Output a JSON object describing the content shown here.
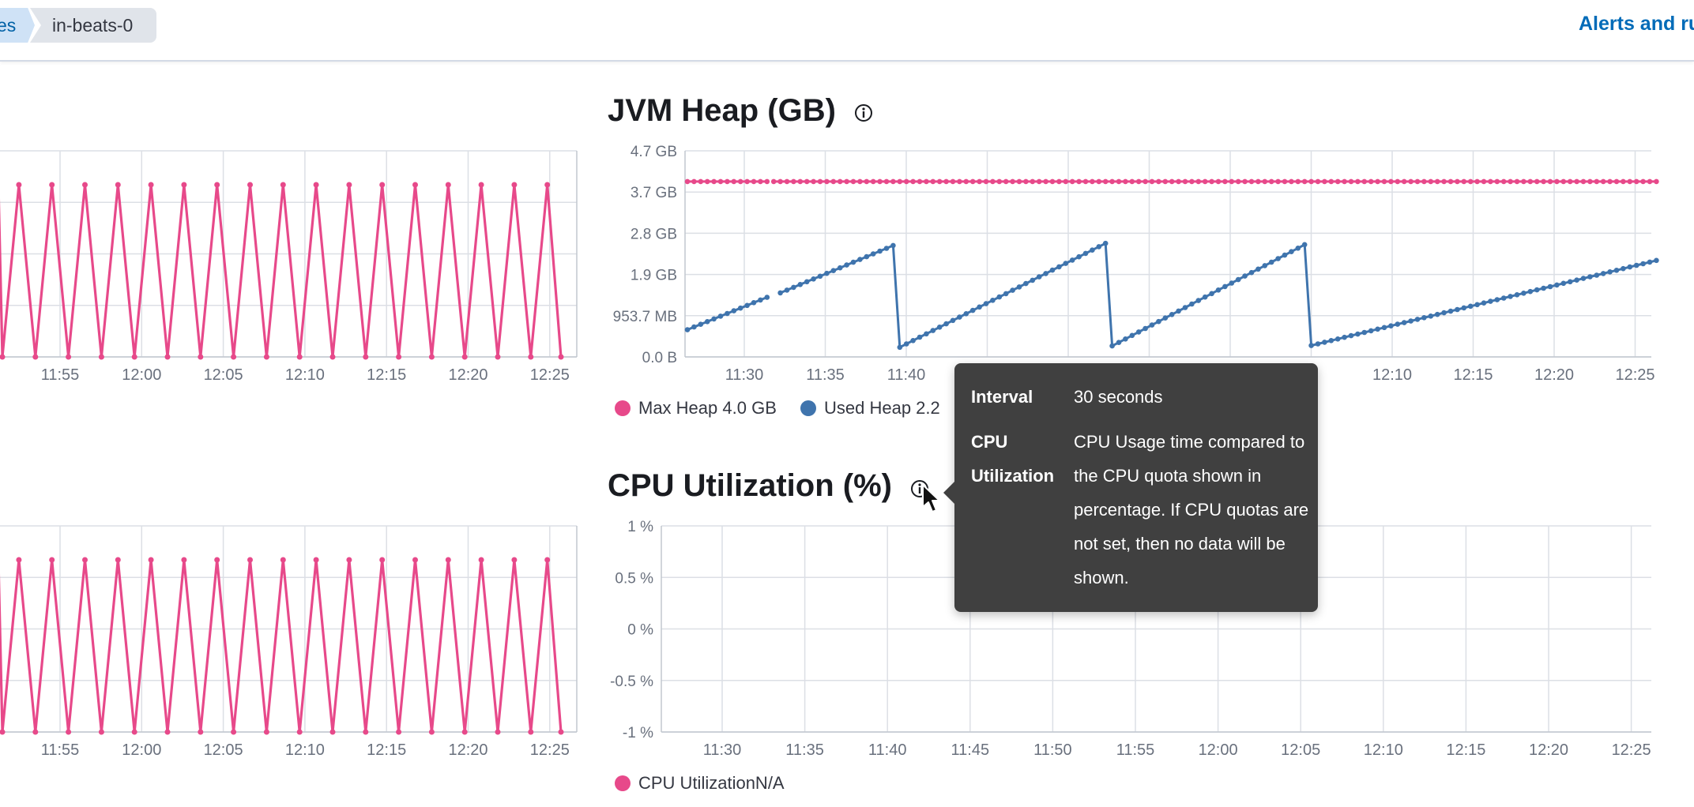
{
  "breadcrumb": {
    "previous": "es",
    "current": "in-beats-0"
  },
  "header": {
    "alerts_link": "Alerts and ru"
  },
  "colors": {
    "pink": "#e7498a",
    "blue": "#3f74ad",
    "grid": "#dcdfe5",
    "tooltip_bg": "#404040"
  },
  "jvm_heap": {
    "title": "JVM Heap (GB)",
    "info_icon": "info-icon",
    "legend": [
      {
        "name": "Max Heap 4.0 GB",
        "color": "#e7498a"
      },
      {
        "name": "Used Heap 2.2",
        "color": "#3f74ad"
      }
    ],
    "chart_data": {
      "type": "line",
      "y_ticks": [
        "4.7 GB",
        "3.7 GB",
        "2.8 GB",
        "1.9 GB",
        "953.7 MB",
        "0.0 B"
      ],
      "x_ticks": [
        "11:30",
        "11:35",
        "11:40",
        "",
        "",
        "",
        "",
        "",
        "12:10",
        "12:15",
        "12:20",
        "12:25"
      ],
      "series": [
        {
          "name": "Max Heap",
          "points": [
            [
              0,
              4.0
            ],
            [
              12,
              4.0
            ],
            [
              13,
              4.0
            ],
            [
              146,
              4.0
            ]
          ]
        },
        {
          "name": "Used Heap",
          "points": [
            [
              0,
              0.62
            ],
            [
              12,
              1.36
            ],
            [
              14,
              1.46
            ],
            [
              31,
              2.54
            ],
            [
              32,
              0.22
            ],
            [
              63,
              2.59
            ],
            [
              64,
              0.25
            ],
            [
              93,
              2.56
            ],
            [
              94,
              0.26
            ],
            [
              146,
              2.2
            ]
          ]
        }
      ]
    }
  },
  "cpu_utilization": {
    "title": "CPU Utilization (%)",
    "info_icon": "info-icon",
    "legend": [
      {
        "name": "CPU UtilizationN/A",
        "color": "#e7498a"
      }
    ],
    "chart_data": {
      "type": "line",
      "y_ticks": [
        "1 %",
        "0.5 %",
        "0 %",
        "-0.5 %",
        "-1 %"
      ],
      "x_ticks": [
        "11:30",
        "11:35",
        "11:40",
        "11:45",
        "11:50",
        "11:55",
        "12:00",
        "12:05",
        "12:10",
        "12:15",
        "12:20",
        "12:25"
      ],
      "series": []
    }
  },
  "left_charts": {
    "top": {
      "x_ticks": [
        "11:55",
        "12:00",
        "12:05",
        "12:10",
        "12:15",
        "12:20",
        "12:25"
      ]
    },
    "bottom": {
      "x_ticks": [
        "11:55",
        "12:00",
        "12:05",
        "12:10",
        "12:15",
        "12:20",
        "12:25"
      ]
    }
  },
  "tooltip": {
    "rows": [
      {
        "key": "Interval",
        "value": "30 seconds"
      },
      {
        "key": "CPU Utilization",
        "value": "CPU Usage time compared to the CPU quota shown in percentage. If CPU quotas are not set, then no data will be shown."
      }
    ]
  },
  "cursor_icon": "mouse-pointer-icon"
}
